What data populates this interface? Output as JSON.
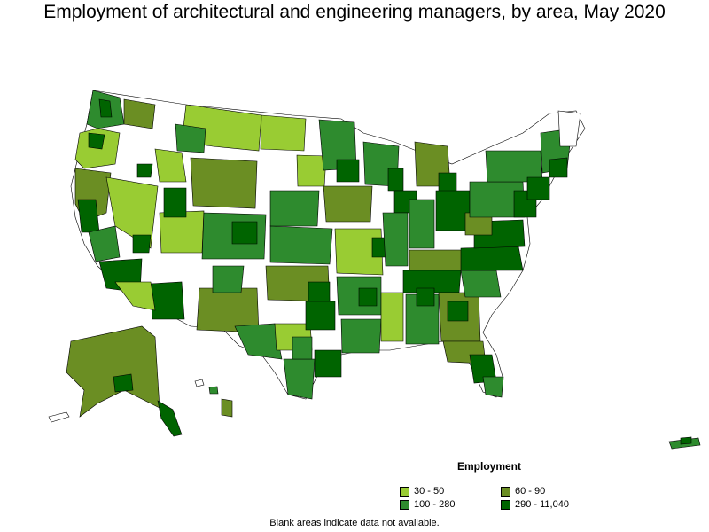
{
  "title": "Employment of architectural and engineering managers, by area, May 2020",
  "legend": {
    "title": "Employment",
    "items": [
      {
        "label": "30 - 50",
        "color": "#99cc33"
      },
      {
        "label": "60 - 90",
        "color": "#6b8e23"
      },
      {
        "label": "100 - 280",
        "color": "#2e8b2e"
      },
      {
        "label": "290 - 11,040",
        "color": "#006400"
      }
    ]
  },
  "footnote": "Blank areas indicate data not available."
}
